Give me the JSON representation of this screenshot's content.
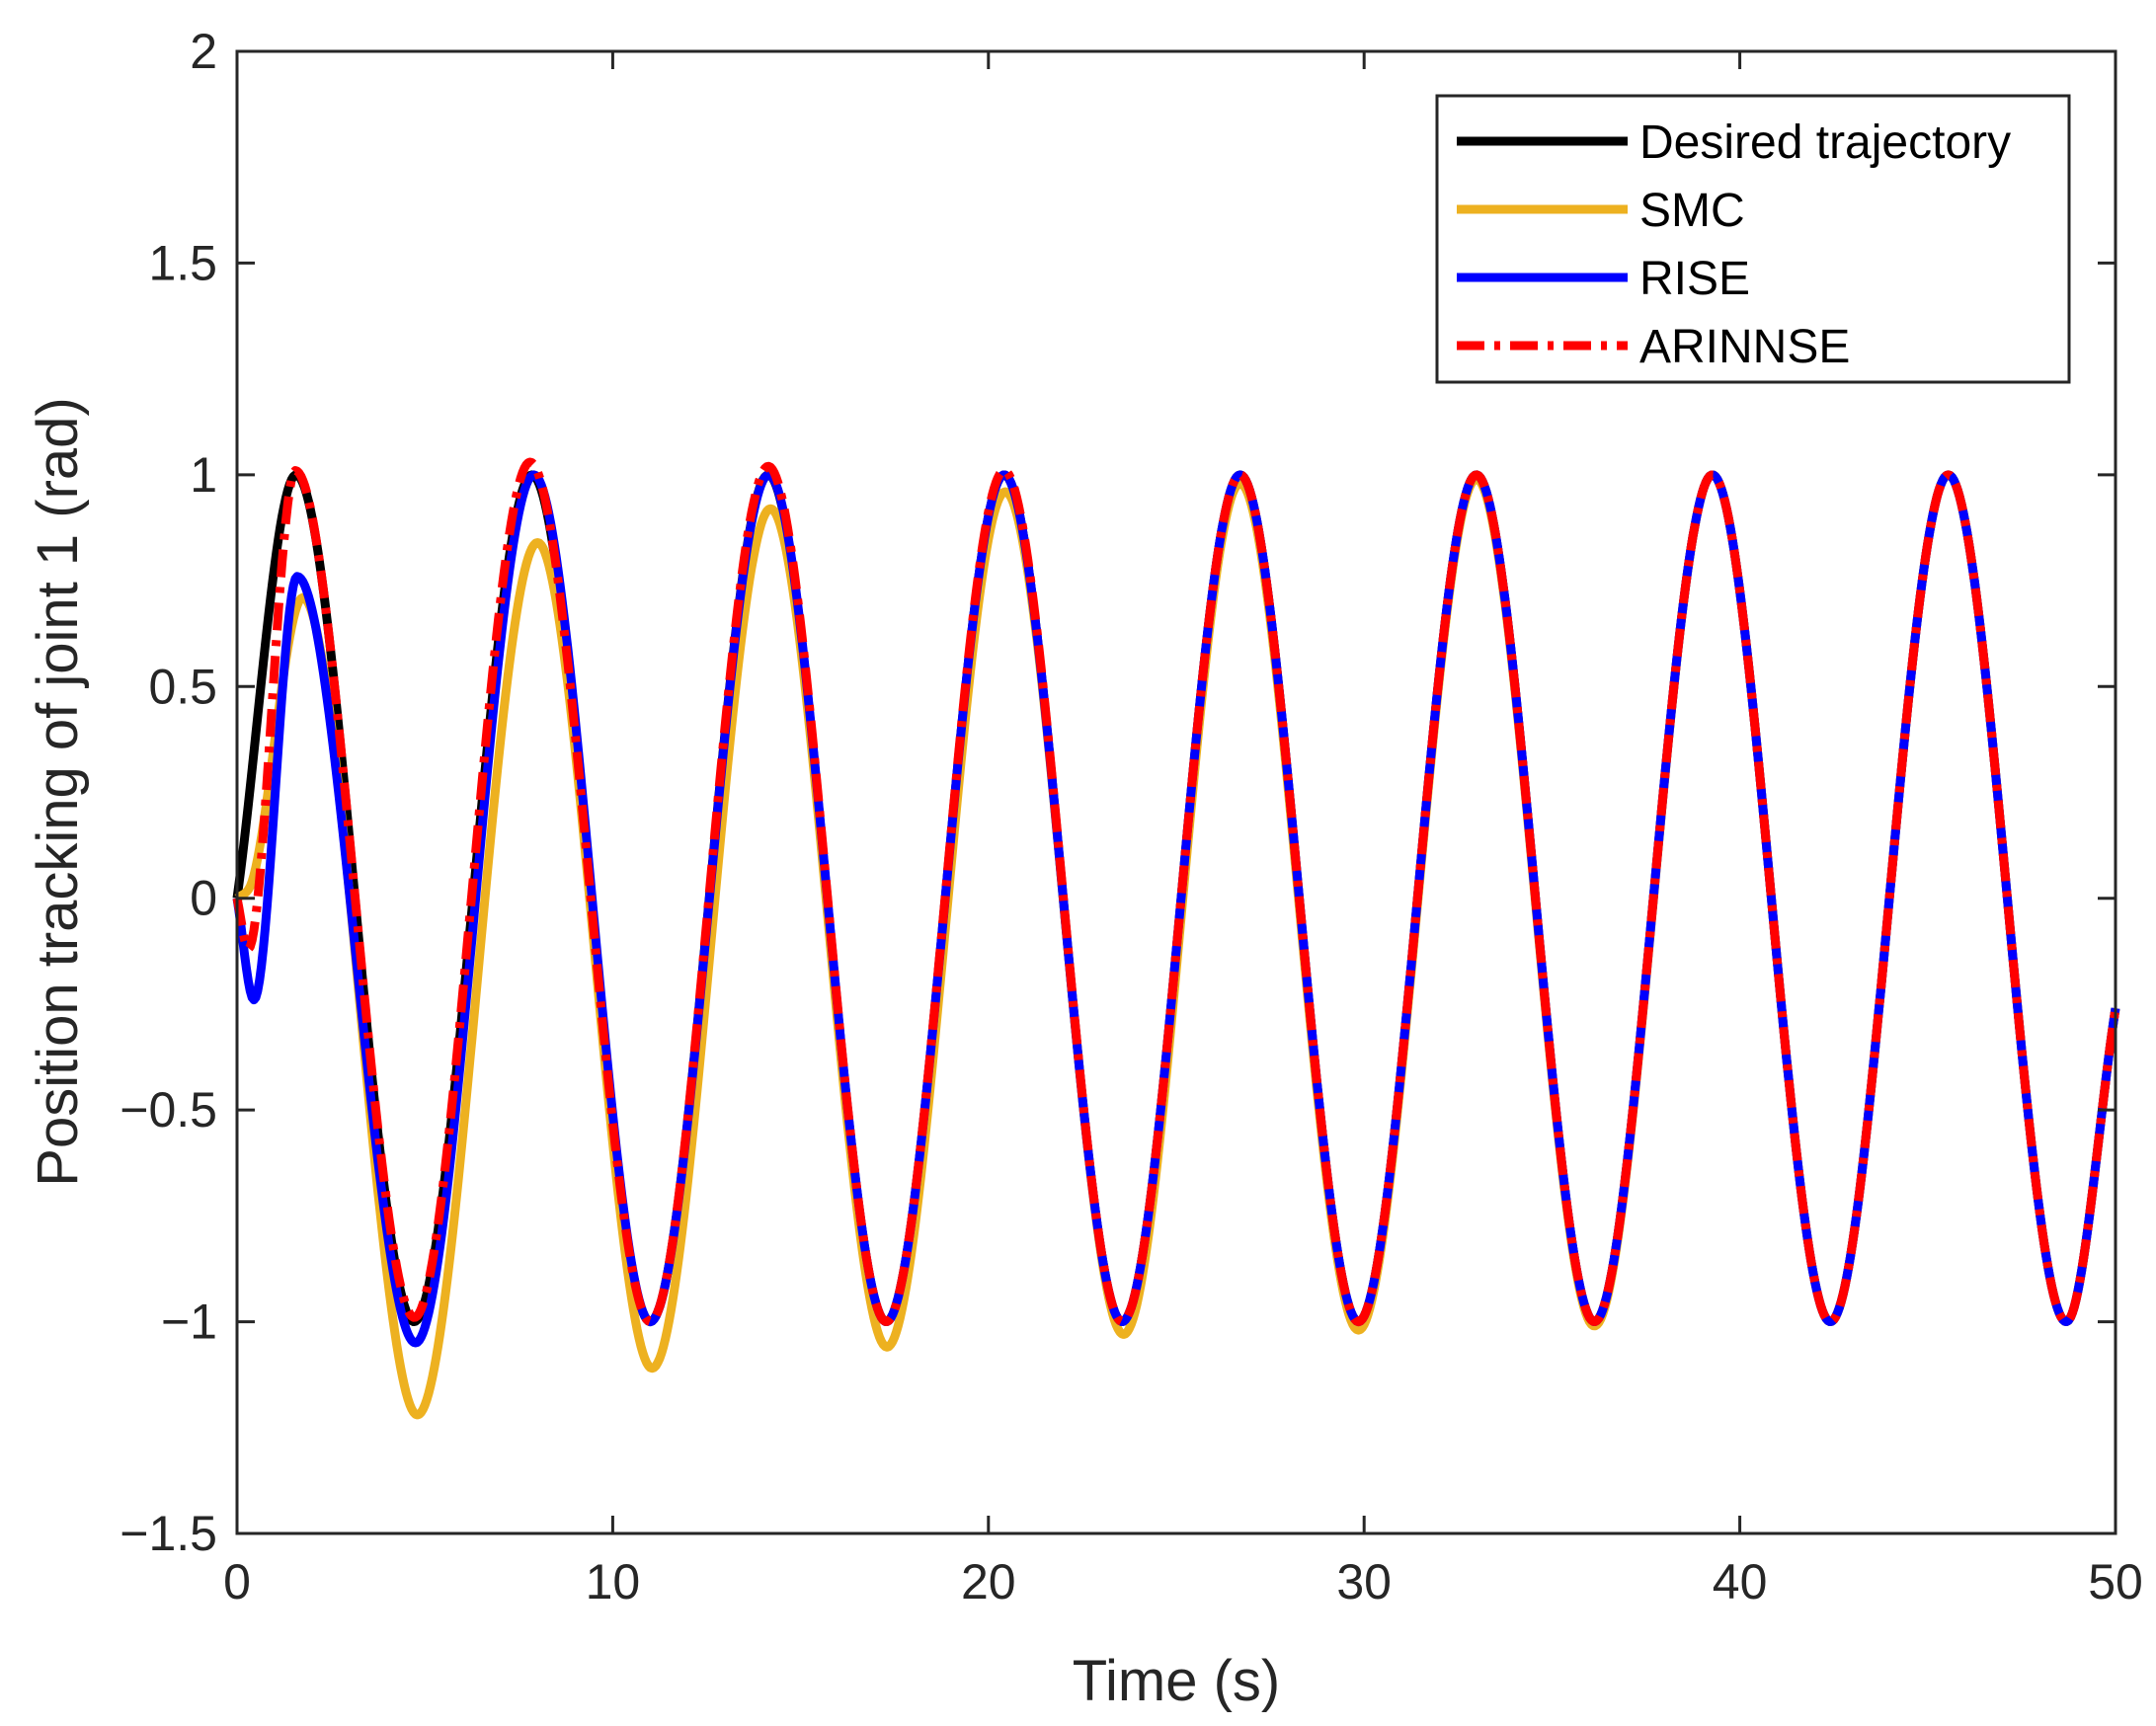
{
  "chart_data": {
    "type": "line",
    "title": "",
    "xlabel": "Time (s)",
    "ylabel": "Position tracking of joint 1 (rad)",
    "xlim": [
      0,
      50
    ],
    "ylim": [
      -1.5,
      2
    ],
    "xticks": [
      0,
      10,
      20,
      30,
      40,
      50
    ],
    "xtick_labels": [
      "0",
      "10",
      "20",
      "30",
      "40",
      "50"
    ],
    "yticks": [
      -1.5,
      -1,
      -0.5,
      0,
      0.5,
      1,
      1.5,
      2
    ],
    "ytick_labels": [
      "−1.5",
      "−1",
      "−0.5",
      "0",
      "0.5",
      "1",
      "1.5",
      "2"
    ],
    "grid": false,
    "legend_position": "top-right",
    "desired_trajectory": "sin(t)",
    "series": [
      {
        "name": "Desired trajectory",
        "color": "#000000",
        "style": "solid",
        "x": [
          0,
          1.57,
          4.71,
          7.85,
          11.0,
          14.14,
          17.28,
          20.42,
          23.56,
          26.7,
          29.85,
          32.99,
          36.13,
          39.27,
          42.41,
          45.55,
          48.69,
          50
        ],
        "y": [
          0,
          1,
          -1,
          1,
          -1,
          1,
          -1,
          1,
          -1,
          1,
          -1,
          1,
          -1,
          1,
          -1,
          1,
          -1,
          -0.26
        ]
      },
      {
        "name": "SMC",
        "color": "#EDB120",
        "style": "solid",
        "x": [
          0,
          0.3,
          1.75,
          4.8,
          8.0,
          11.05,
          14.2,
          17.3,
          20.45,
          23.6,
          26.7,
          29.85,
          32.99,
          36.13,
          39.27,
          42.41,
          45.55,
          48.69,
          50
        ],
        "y": [
          0,
          0.02,
          0.71,
          -1.22,
          0.84,
          -1.11,
          0.92,
          -1.06,
          0.96,
          -1.03,
          0.98,
          -1.02,
          0.99,
          -1.01,
          1.0,
          -1.0,
          1.0,
          -1.0,
          -0.26
        ]
      },
      {
        "name": "RISE",
        "color": "#0000FF",
        "style": "solid",
        "x": [
          0,
          0.45,
          1.6,
          4.75,
          7.9,
          11.0,
          14.15,
          17.28,
          20.42,
          23.56,
          26.7,
          29.85,
          32.99,
          36.13,
          39.27,
          42.41,
          45.55,
          48.69,
          50
        ],
        "y": [
          0,
          -0.24,
          0.76,
          -1.05,
          1.0,
          -1.0,
          1.0,
          -1.0,
          1.0,
          -1.0,
          1.0,
          -1.0,
          1.0,
          -1.0,
          1.0,
          -1.0,
          1.0,
          -1.0,
          -0.26
        ]
      },
      {
        "name": "ARINNSE",
        "color": "#FF0000",
        "style": "dash-dot",
        "x": [
          0,
          0.3,
          1.55,
          4.72,
          7.8,
          11.0,
          14.14,
          17.28,
          20.42,
          23.56,
          26.7,
          29.85,
          32.99,
          36.13,
          39.27,
          42.41,
          45.55,
          48.69,
          50
        ],
        "y": [
          0,
          -0.12,
          1.01,
          -0.99,
          1.03,
          -1.0,
          1.02,
          -1.0,
          1.01,
          -1.0,
          1.0,
          -1.0,
          1.0,
          -1.0,
          1.0,
          -1.0,
          1.0,
          -1.0,
          -0.26
        ]
      }
    ]
  }
}
